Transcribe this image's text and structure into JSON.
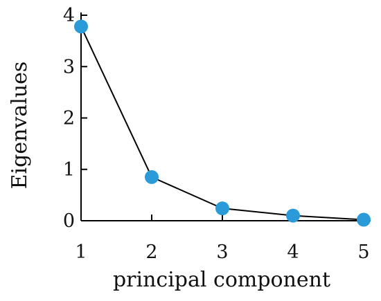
{
  "chart_data": {
    "type": "line",
    "title": "",
    "xlabel": "principal component",
    "ylabel": "Eigenvalues",
    "x": [
      1,
      2,
      3,
      4,
      5
    ],
    "series": [
      {
        "values": [
          3.78,
          0.85,
          0.24,
          0.1,
          0.02
        ]
      }
    ],
    "xlim": [
      1,
      5
    ],
    "ylim": [
      0,
      4
    ],
    "x_ticks": [
      "1",
      "2",
      "3",
      "4",
      "5"
    ],
    "y_ticks": [
      "0",
      "1",
      "2",
      "3",
      "4"
    ],
    "grid": false,
    "legend": "none",
    "line_color": "#000000",
    "marker_color": "#2a9ad8"
  }
}
